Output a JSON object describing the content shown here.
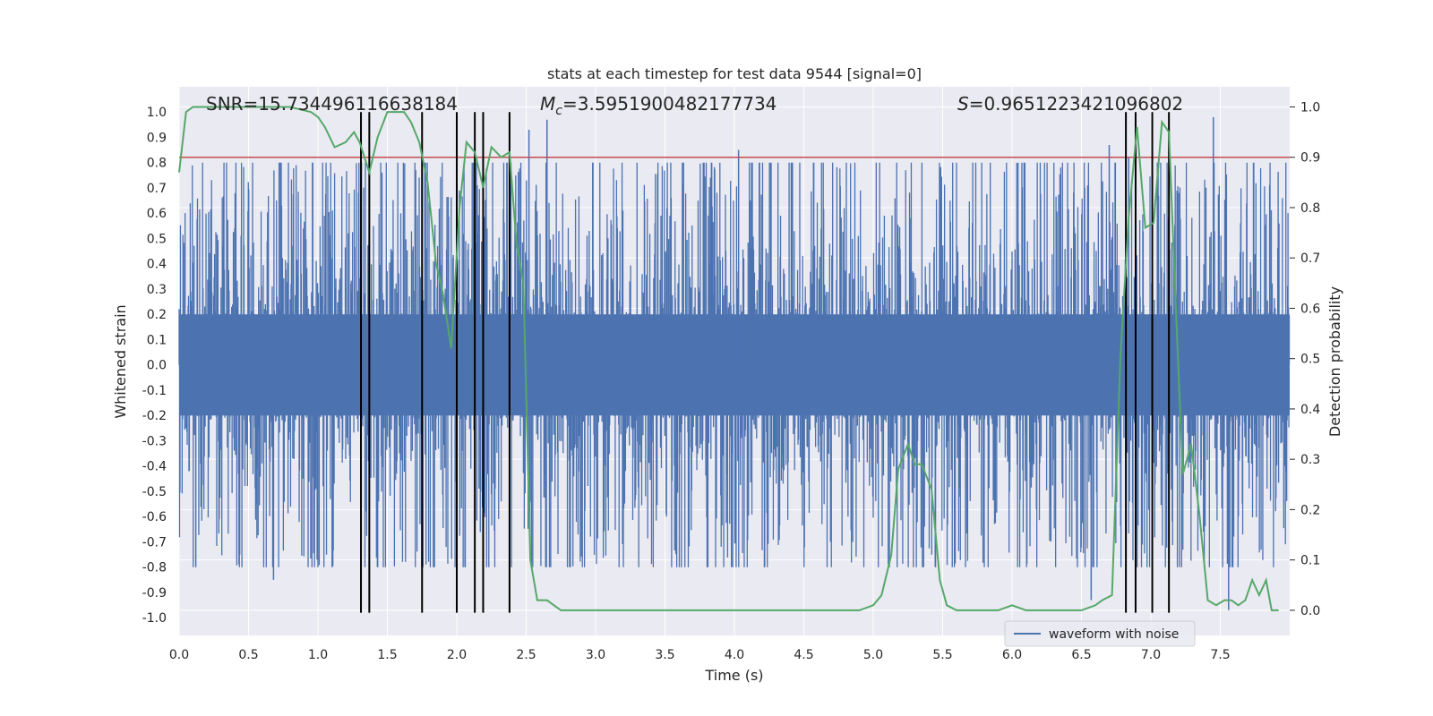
{
  "chart_data": {
    "type": "line",
    "title": "stats at each timestep for test data 9544 [signal=0]",
    "xlabel": "Time (s)",
    "ylabel_left": "Whitened strain",
    "ylabel_right": "Detection probability",
    "xlim": [
      0,
      8
    ],
    "ylim_left": [
      -1.07,
      1.1
    ],
    "ylim_right": [
      -0.05,
      1.04
    ],
    "x_ticks": [
      "0.0",
      "0.5",
      "1.0",
      "1.5",
      "2.0",
      "2.5",
      "3.0",
      "3.5",
      "4.0",
      "4.5",
      "5.0",
      "5.5",
      "6.0",
      "6.5",
      "7.0",
      "7.5"
    ],
    "x_tick_values": [
      0,
      0.5,
      1,
      1.5,
      2,
      2.5,
      3,
      3.5,
      4,
      4.5,
      5,
      5.5,
      6,
      6.5,
      7,
      7.5
    ],
    "y_ticks_left": [
      "1.0",
      "0.9",
      "0.8",
      "0.7",
      "0.6",
      "0.5",
      "0.4",
      "0.3",
      "0.2",
      "0.1",
      "0.0",
      "-0.1",
      "-0.2",
      "-0.3",
      "-0.4",
      "-0.5",
      "-0.6",
      "-0.7",
      "-0.8",
      "-0.9",
      "-1.0"
    ],
    "y_tick_values_left": [
      1.0,
      0.9,
      0.8,
      0.7,
      0.6,
      0.5,
      0.4,
      0.3,
      0.2,
      0.1,
      0.0,
      -0.1,
      -0.2,
      -0.3,
      -0.4,
      -0.5,
      -0.6,
      -0.7,
      -0.8,
      -0.9,
      -1.0
    ],
    "y_ticks_right": [
      "1.0",
      "0.9",
      "0.8",
      "0.7",
      "0.6",
      "0.5",
      "0.4",
      "0.3",
      "0.2",
      "0.1",
      "0.0"
    ],
    "y_tick_values_right": [
      1.0,
      0.9,
      0.8,
      0.7,
      0.6,
      0.5,
      0.4,
      0.3,
      0.2,
      0.1,
      0.0
    ],
    "annotations": {
      "snr": "SNR=15.734496116638184",
      "mc_symbol": "M",
      "mc_sub": "c",
      "mc_value": "=3.5951900482177734",
      "s_symbol": "S",
      "s_value": "=0.9651223421096802"
    },
    "threshold_right": 0.9,
    "event_lines_x": [
      1.31,
      1.37,
      1.75,
      2.0,
      2.13,
      2.19,
      2.38,
      6.82,
      6.89,
      7.01,
      7.13
    ],
    "event_line_range_left": [
      -0.98,
      1.0
    ],
    "waveform": {
      "name": "waveform with noise",
      "envelope_upper": 0.6,
      "envelope_lower": -0.6,
      "spikes": [
        {
          "x": 2.52,
          "y": 0.93
        },
        {
          "x": 2.65,
          "y": 0.97
        },
        {
          "x": 4.03,
          "y": 0.85
        },
        {
          "x": 6.7,
          "y": 0.87
        },
        {
          "x": 6.84,
          "y": 0.82
        },
        {
          "x": 7.45,
          "y": 0.98
        },
        {
          "x": 0.68,
          "y": -0.85
        },
        {
          "x": 0.12,
          "y": -0.8
        },
        {
          "x": 6.57,
          "y": -0.93
        },
        {
          "x": 7.56,
          "y": -0.97
        }
      ]
    },
    "detection_probability": {
      "x": [
        0,
        0.05,
        0.1,
        0.2,
        0.4,
        0.6,
        0.8,
        0.95,
        1.0,
        1.05,
        1.12,
        1.2,
        1.26,
        1.3,
        1.37,
        1.43,
        1.5,
        1.56,
        1.62,
        1.67,
        1.73,
        1.79,
        1.85,
        1.9,
        1.96,
        2.02,
        2.07,
        2.13,
        2.19,
        2.25,
        2.32,
        2.38,
        2.43,
        2.48,
        2.53,
        2.58,
        2.65,
        2.75,
        3.0,
        3.5,
        4.0,
        4.5,
        4.9,
        5.0,
        5.06,
        5.13,
        5.18,
        5.25,
        5.3,
        5.35,
        5.42,
        5.48,
        5.53,
        5.6,
        5.7,
        5.9,
        6.0,
        6.1,
        6.3,
        6.5,
        6.6,
        6.65,
        6.72,
        6.78,
        6.84,
        6.9,
        6.96,
        7.02,
        7.08,
        7.13,
        7.18,
        7.23,
        7.29,
        7.35,
        7.41,
        7.47,
        7.53,
        7.58,
        7.63,
        7.68,
        7.73,
        7.78,
        7.83,
        7.87,
        7.92
      ],
      "y": [
        0.87,
        0.99,
        1.0,
        1.0,
        1.0,
        1.0,
        1.0,
        0.99,
        0.98,
        0.96,
        0.92,
        0.93,
        0.95,
        0.93,
        0.87,
        0.94,
        0.99,
        0.99,
        0.99,
        0.97,
        0.93,
        0.85,
        0.69,
        0.63,
        0.52,
        0.8,
        0.93,
        0.91,
        0.84,
        0.92,
        0.9,
        0.91,
        0.73,
        0.65,
        0.1,
        0.02,
        0.02,
        0.0,
        0.0,
        0.0,
        0.0,
        0.0,
        0.0,
        0.01,
        0.03,
        0.11,
        0.28,
        0.33,
        0.29,
        0.29,
        0.24,
        0.06,
        0.01,
        0.0,
        0.0,
        0.0,
        0.01,
        0.0,
        0.0,
        0.0,
        0.01,
        0.02,
        0.03,
        0.5,
        0.78,
        0.96,
        0.76,
        0.77,
        0.97,
        0.95,
        0.6,
        0.27,
        0.33,
        0.19,
        0.02,
        0.01,
        0.02,
        0.02,
        0.01,
        0.02,
        0.06,
        0.03,
        0.06,
        0.0,
        0.0
      ]
    },
    "legend": {
      "location": "lower-center",
      "label": "waveform with noise"
    }
  },
  "colors": {
    "plot_bg": "#eaeaf2",
    "grid": "#ffffff",
    "waveform": "#4c72b0",
    "probability": "#55a868",
    "threshold": "#c44e52",
    "event_lines": "#000000",
    "text": "#262626"
  }
}
